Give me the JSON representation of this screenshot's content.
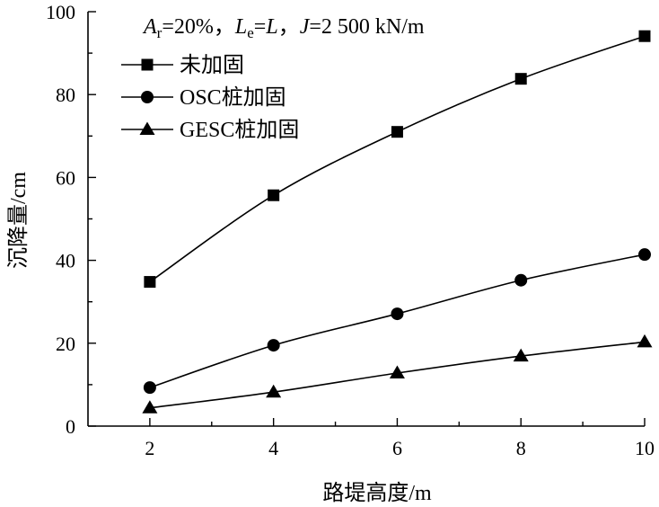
{
  "chart_data": {
    "type": "line",
    "annotation": {
      "ar_symbol": "A",
      "ar_sub": "r",
      "ar_value": "=20%，",
      "le_symbol": "L",
      "le_sub": "e",
      "le_eq": "=",
      "l_symbol": "L",
      "sep": "，",
      "j_symbol": "J",
      "j_value": "=2 500 kN/m"
    },
    "xlabel": "路堤高度/m",
    "ylabel": "沉降量/cm",
    "xlim": [
      1,
      10
    ],
    "ylim": [
      0,
      100
    ],
    "x_ticks": [
      2,
      4,
      6,
      8,
      10
    ],
    "x_minor_ticks": [
      1,
      3,
      5,
      7,
      9
    ],
    "y_ticks": [
      0,
      20,
      40,
      60,
      80,
      100
    ],
    "y_minor_ticks": [
      10,
      30,
      50,
      70,
      90
    ],
    "x_tick_labels": [
      "2",
      "4",
      "6",
      "8",
      "10"
    ],
    "y_tick_labels": [
      "0",
      "20",
      "40",
      "60",
      "80",
      "100"
    ],
    "legend_position": "top-left",
    "grid": false,
    "x": [
      2,
      4,
      6,
      8,
      10
    ],
    "series": [
      {
        "name": "未加固",
        "marker": "square",
        "values": [
          34.8,
          55.7,
          71.0,
          83.8,
          94.1
        ]
      },
      {
        "name": "OSC桩加固",
        "marker": "circle",
        "values": [
          9.3,
          19.5,
          27.1,
          35.2,
          41.4
        ]
      },
      {
        "name": "GESC桩加固",
        "marker": "triangle",
        "values": [
          4.4,
          8.2,
          12.8,
          16.9,
          20.3
        ]
      }
    ]
  }
}
